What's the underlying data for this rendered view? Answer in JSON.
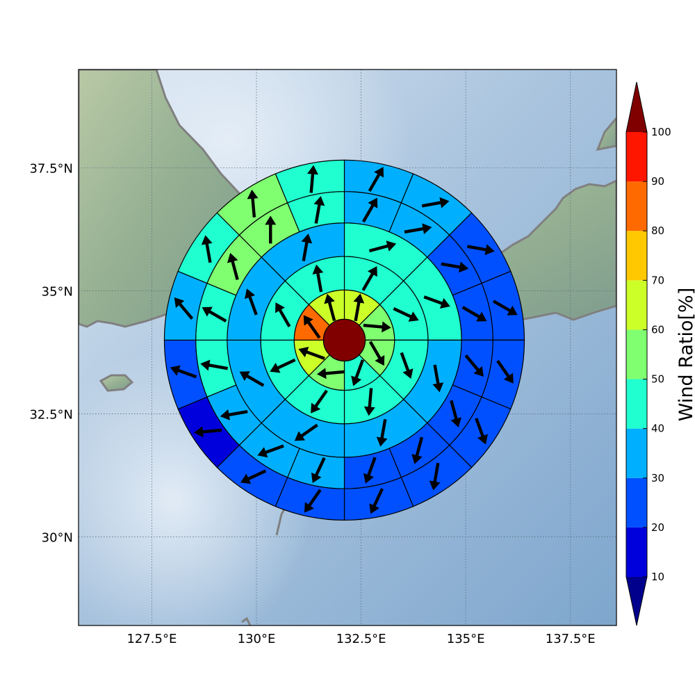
{
  "map": {
    "projection": "lat-lon",
    "lon_range": [
      125.75,
      138.6
    ],
    "lat_range": [
      28.2,
      39.5
    ],
    "grid": true,
    "x_ticks": [
      {
        "value": 127.5,
        "label": "127.5°E"
      },
      {
        "value": 130.0,
        "label": "130°E"
      },
      {
        "value": 132.5,
        "label": "132.5°E"
      },
      {
        "value": 135.0,
        "label": "135°E"
      },
      {
        "value": 137.5,
        "label": "137.5°E"
      }
    ],
    "y_ticks": [
      {
        "value": 30.0,
        "label": "30°N"
      },
      {
        "value": 32.5,
        "label": "32.5°N"
      },
      {
        "value": 35.0,
        "label": "35°N"
      },
      {
        "value": 37.5,
        "label": "37.5°N"
      }
    ],
    "colors": {
      "sea_light": "#cfdeec",
      "sea_dark": "#86acd0",
      "land": "#9fb59a",
      "coastline": "#808080",
      "grid": "#5a6e80",
      "cell_edge": "#000000",
      "arrow": "#000000"
    }
  },
  "chart_data": {
    "type": "heatmap",
    "description_kind": "polar-sector wind ratio with wind direction arrows",
    "center": {
      "lon": 132.1,
      "lat": 34.0
    },
    "ring_radii_deg_lon": [
      0.5,
      1.2,
      2.0,
      2.8,
      3.55,
      4.3
    ],
    "sector_counts": [
      1,
      8,
      8,
      8,
      16,
      16
    ],
    "sector_angles_note": "sectors start at north and go clockwise",
    "rings": [
      {
        "ratio": [
          100
        ],
        "arrow_dir_deg": [
          null
        ]
      },
      {
        "ratio": [
          65,
          55,
          55,
          45,
          58,
          62,
          80,
          68
        ],
        "arrow_dir_deg": [
          10,
          95,
          150,
          200,
          265,
          290,
          325,
          345
        ]
      },
      {
        "ratio": [
          45,
          42,
          42,
          42,
          40,
          40,
          42,
          48
        ],
        "arrow_dir_deg": [
          30,
          115,
          160,
          185,
          215,
          245,
          330,
          350
        ]
      },
      {
        "ratio": [
          45,
          40,
          35,
          35,
          38,
          32,
          33,
          38
        ],
        "arrow_dir_deg": [
          75,
          110,
          170,
          190,
          235,
          300,
          340,
          10
        ]
      },
      {
        "ratio": [
          35,
          35,
          25,
          25,
          22,
          22,
          22,
          22,
          35,
          35,
          35,
          40,
          42,
          50,
          50,
          42
        ],
        "arrow_dir_deg": [
          30,
          80,
          100,
          120,
          140,
          165,
          195,
          200,
          205,
          250,
          260,
          280,
          300,
          345,
          0,
          10
        ]
      },
      {
        "ratio": [
          35,
          35,
          25,
          25,
          25,
          25,
          25,
          25,
          25,
          25,
          15,
          25,
          35,
          40,
          52,
          42
        ],
        "arrow_dir_deg": [
          30,
          80,
          100,
          120,
          145,
          160,
          190,
          205,
          215,
          245,
          265,
          290,
          320,
          350,
          355,
          5
        ]
      }
    ],
    "colorbar": {
      "label": "Wind Ratio[%]",
      "levels": [
        10,
        20,
        30,
        40,
        50,
        60,
        70,
        80,
        90,
        100
      ],
      "colors": [
        "#0000dc",
        "#0050ff",
        "#00b0ff",
        "#20ffd0",
        "#80ff70",
        "#ccff28",
        "#ffc800",
        "#ff6a00",
        "#ff1600"
      ],
      "under_color": "#00008c",
      "over_color": "#800000",
      "extend": "both"
    }
  }
}
